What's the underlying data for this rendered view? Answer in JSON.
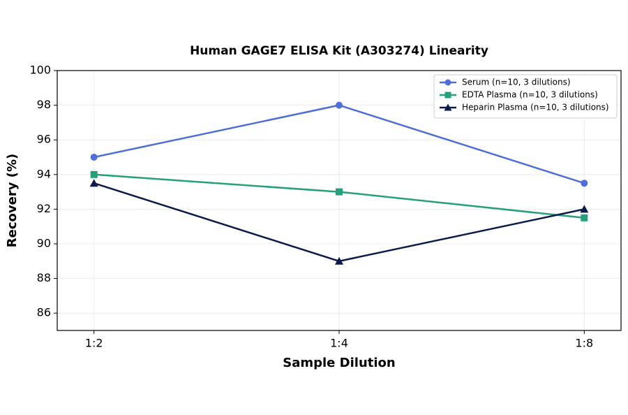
{
  "chart_data": {
    "type": "line",
    "title": "Human GAGE7 ELISA Kit (A303274) Linearity",
    "x_label": "Sample Dilution",
    "y_label": "Recovery (%)",
    "categories": [
      "1:2",
      "1:4",
      "1:8"
    ],
    "series": [
      {
        "name": "Serum (n=10, 3 dilutions)",
        "color": "#4f6fd6",
        "marker": "circle",
        "values": [
          95,
          98,
          93.5
        ]
      },
      {
        "name": "EDTA Plasma (n=10, 3 dilutions)",
        "color": "#26a07a",
        "marker": "square",
        "values": [
          94,
          93,
          91.5
        ]
      },
      {
        "name": "Heparin Plasma (n=10, 3 dilutions)",
        "color": "#0d1b4a",
        "marker": "triangle",
        "values": [
          93.5,
          89,
          92
        ]
      }
    ],
    "ylim": [
      85,
      100
    ],
    "yticks": [
      86,
      88,
      90,
      92,
      94,
      96,
      98,
      100
    ],
    "grid": true,
    "legend": "upper right"
  }
}
